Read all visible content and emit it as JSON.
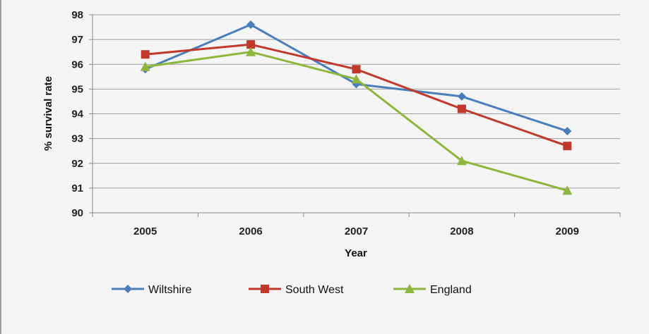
{
  "chart_data": {
    "type": "line",
    "title": "",
    "xlabel": "Year",
    "ylabel": "% survival rate",
    "categories": [
      "2005",
      "2006",
      "2007",
      "2008",
      "2009"
    ],
    "ylim": [
      90,
      98
    ],
    "yticks": [
      90,
      91,
      92,
      93,
      94,
      95,
      96,
      97,
      98
    ],
    "grid": "horizontal",
    "legend_position": "bottom",
    "series": [
      {
        "name": "Wiltshire",
        "values": [
          95.8,
          97.6,
          95.2,
          94.7,
          93.3
        ],
        "color": "#4a7ebb",
        "marker": "diamond"
      },
      {
        "name": "South West",
        "values": [
          96.4,
          96.8,
          95.8,
          94.2,
          92.7
        ],
        "color": "#c0392b",
        "marker": "square"
      },
      {
        "name": "England",
        "values": [
          95.9,
          96.5,
          95.4,
          92.1,
          90.9
        ],
        "color": "#8db63c",
        "marker": "triangle"
      }
    ]
  }
}
